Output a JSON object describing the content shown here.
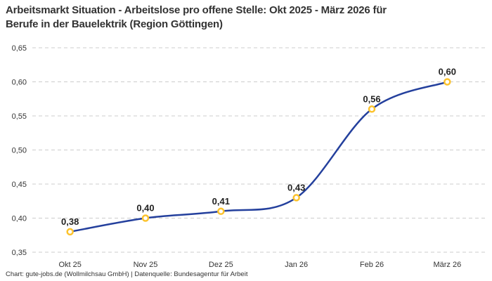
{
  "header": {
    "title": "Arbeitsmarkt Situation - Arbeitslose pro offene Stelle: Okt 2025 - März 2026 für\nBerufe in der Bauelektrik (Region Göttingen)"
  },
  "footer": {
    "credit": "Chart: gute-jobs.de (Wollmilchsau GmbH) | Datenquelle: Bundesagentur für Arbeit"
  },
  "chart_data": {
    "type": "line",
    "title": "Arbeitsmarkt Situation - Arbeitslose pro offene Stelle: Okt 2025 - März 2026 für Berufe in der Bauelektrik (Region Göttingen)",
    "categories": [
      "Okt 25",
      "Nov 25",
      "Dez 25",
      "Jan 26",
      "Feb 26",
      "März 26"
    ],
    "values": [
      0.38,
      0.4,
      0.41,
      0.43,
      0.56,
      0.6
    ],
    "point_labels": [
      "0,38",
      "0,40",
      "0,41",
      "0,43",
      "0,56",
      "0,60"
    ],
    "ylim": [
      0.35,
      0.65
    ],
    "ytick_step": 0.05,
    "ytick_labels": [
      "0,35",
      "0,40",
      "0,45",
      "0,50",
      "0,55",
      "0,60",
      "0,65"
    ],
    "xlabel": "",
    "ylabel": "",
    "grid": "horizontal-dashed",
    "legend": "none",
    "line_style": "smooth-spline",
    "colors": {
      "line": "#24409d",
      "marker_ring": "#fcc32d",
      "marker_fill": "#ffffff",
      "grid": "#cccccc",
      "axis_text": "#333333",
      "point_label_text": "#222222",
      "background": "#ffffff"
    }
  }
}
